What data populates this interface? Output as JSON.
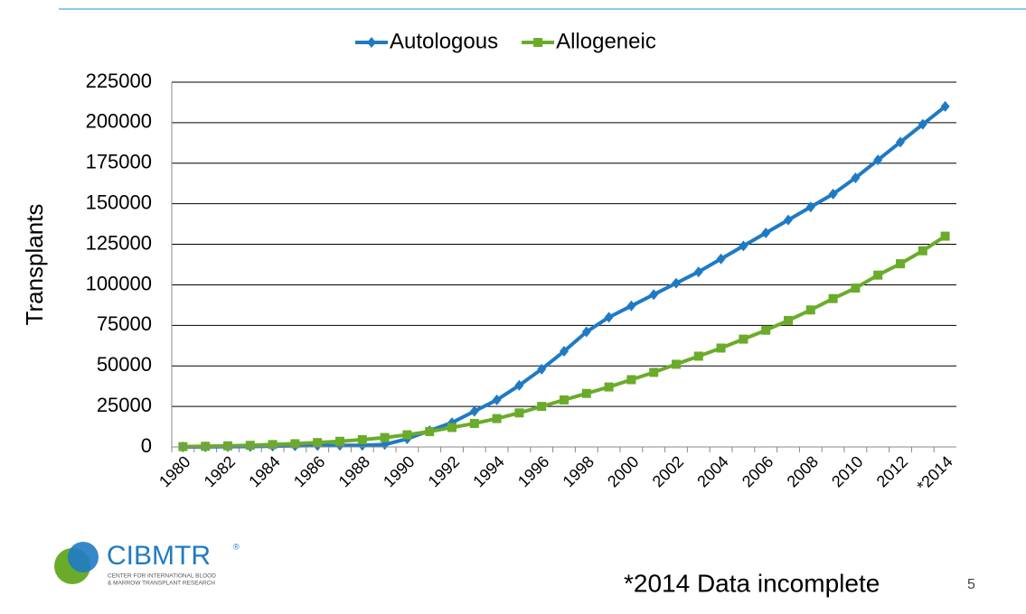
{
  "chart_data": {
    "type": "line",
    "y_label": "Transplants",
    "categories": [
      "1980",
      null,
      "1982",
      null,
      "1984",
      null,
      "1986",
      null,
      "1988",
      null,
      "1990",
      null,
      "1992",
      null,
      "1994",
      null,
      "1996",
      null,
      "1998",
      null,
      "2000",
      null,
      "2002",
      null,
      "2004",
      null,
      "2006",
      null,
      "2008",
      null,
      "2010",
      null,
      "2012",
      null,
      "*2014"
    ],
    "series": [
      {
        "name": "Autologous",
        "color": "#1f7ac4",
        "marker": "diamond",
        "values": [
          0,
          100,
          200,
          300,
          500,
          700,
          900,
          1000,
          1000,
          1500,
          5000,
          10000,
          15000,
          22000,
          29000,
          38000,
          48000,
          59000,
          71000,
          80000,
          87000,
          94000,
          101000,
          108000,
          116000,
          124000,
          132000,
          140000,
          148000,
          156000,
          166000,
          177000,
          188000,
          199000,
          210000
        ]
      },
      {
        "name": "Allogeneic",
        "color": "#6aac2a",
        "marker": "square",
        "values": [
          200,
          400,
          700,
          1000,
          1500,
          2000,
          2700,
          3500,
          4500,
          5800,
          7500,
          9500,
          12000,
          14500,
          17500,
          21000,
          25000,
          29000,
          33000,
          37000,
          41500,
          46000,
          51000,
          56000,
          61000,
          66500,
          72000,
          78000,
          84500,
          91500,
          98000,
          106000,
          113000,
          121000,
          130000
        ]
      }
    ],
    "ylim": [
      0,
      225000
    ],
    "yticks": [
      0,
      25000,
      50000,
      75000,
      100000,
      125000,
      150000,
      175000,
      200000,
      225000
    ],
    "grid": true,
    "legend": "top"
  },
  "logo": {
    "name": "CIBMTR",
    "mark": "®",
    "subtitle": [
      "CENTER FOR INTERNATIONAL BLOOD",
      "& MARROW TRANSPLANT RESEARCH"
    ]
  },
  "footnote": "*2014 Data incomplete",
  "page_number": "5"
}
